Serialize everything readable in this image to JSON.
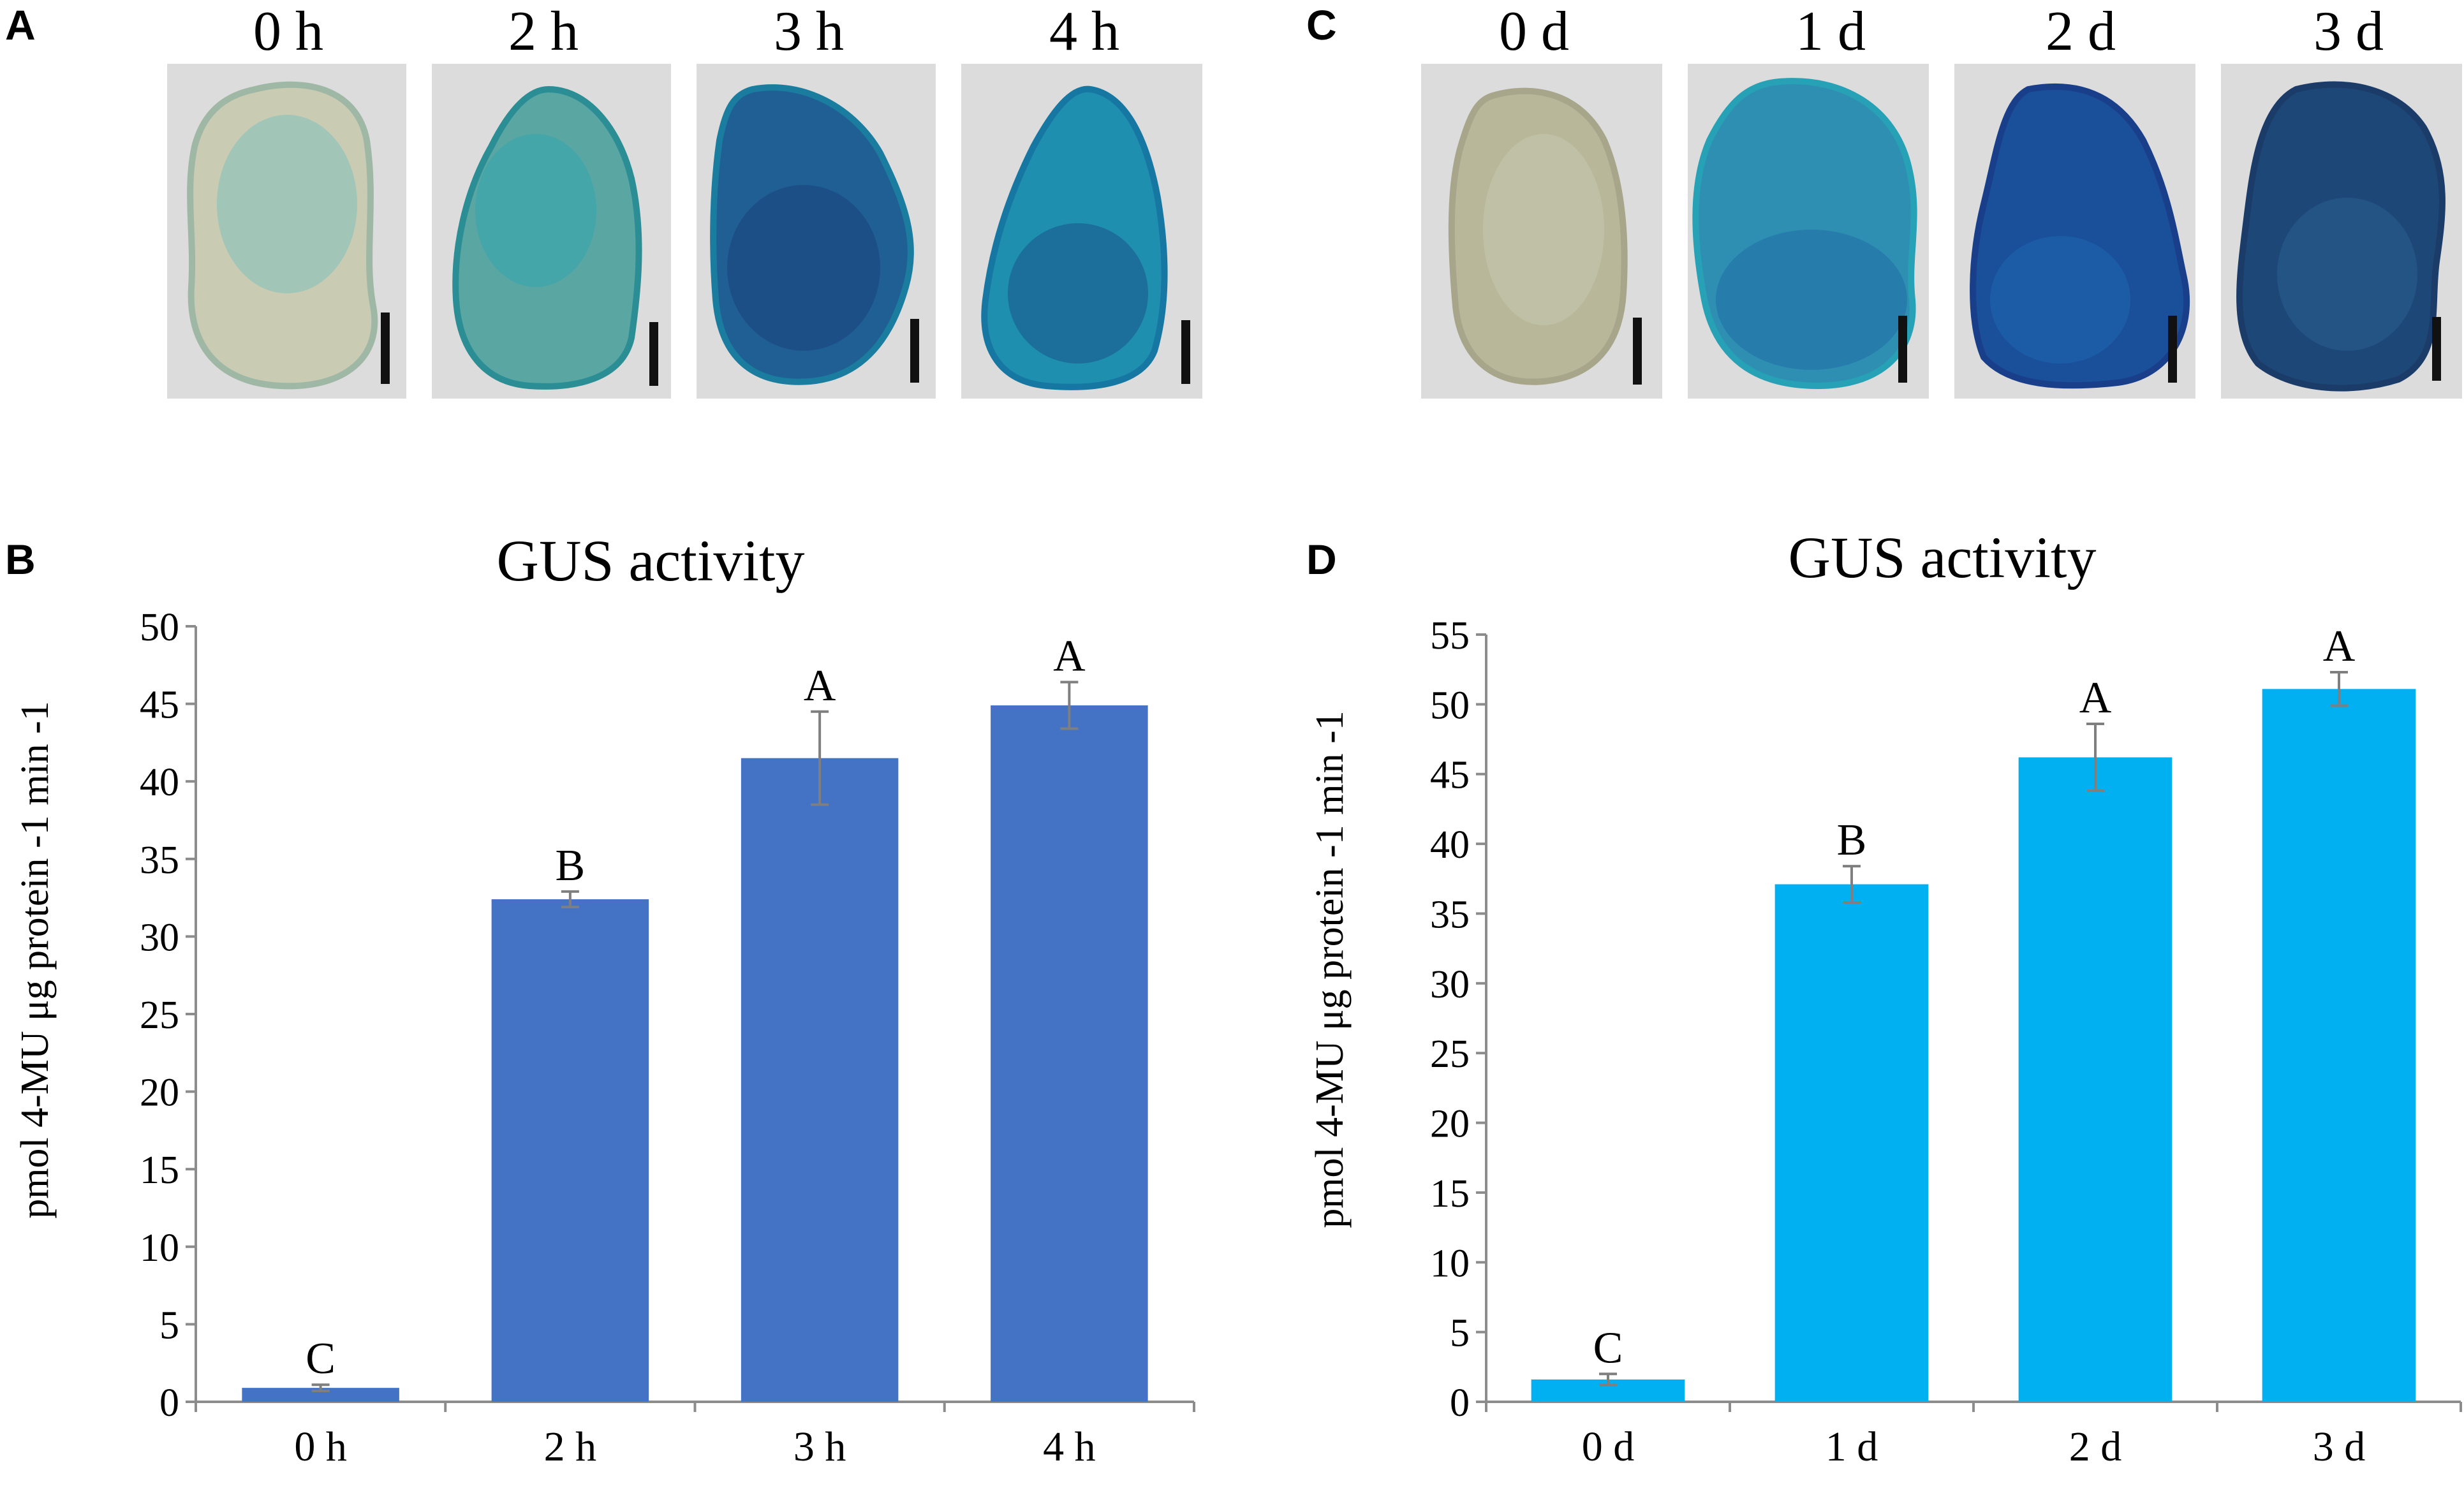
{
  "figure": {
    "panel_labels": [
      "A",
      "B",
      "C",
      "D"
    ],
    "colors": {
      "bar_hours": "#4472C4",
      "bar_days": "#00B0F0",
      "error_bar": "#7F7F7F",
      "axis": "#8c8c8c",
      "photo_bg": "#dcdcdc",
      "scale_bar": "#111111"
    },
    "photos_hours": {
      "labels": [
        "0 h",
        "2 h",
        "3 h",
        "4 h"
      ],
      "stain": [
        {
          "fill": "#c9cbb3",
          "edge": "#9fb8a5",
          "accent": "#7fc3bb"
        },
        {
          "fill": "#5aa6a3",
          "edge": "#2b8e94",
          "accent": "#2aa7b2"
        },
        {
          "fill": "#1f5f94",
          "edge": "#1a7da0",
          "accent": "#1b3f7a"
        },
        {
          "fill": "#1f8fb0",
          "edge": "#1677a2",
          "accent": "#1a4f86"
        }
      ]
    },
    "photos_days": {
      "labels": [
        "0 d",
        "1 d",
        "2 d",
        "3 d"
      ],
      "stain": [
        {
          "fill": "#b9b79a",
          "edge": "#a7a58a",
          "accent": "#cfd0bd"
        },
        {
          "fill": "#2f8fb3",
          "edge": "#27a1b6",
          "accent": "#1f6fa5"
        },
        {
          "fill": "#1a4f9a",
          "edge": "#1a3f8a",
          "accent": "#1e6cb8"
        },
        {
          "fill": "#1d4777",
          "edge": "#1b3b68",
          "accent": "#2a5f8f"
        }
      ]
    }
  },
  "chart_data": [
    {
      "type": "bar",
      "panel": "B",
      "title": "GUS activity",
      "ylabel": "pmol 4-MU μg protein -1 min -1",
      "categories": [
        "0 h",
        "2 h",
        "3 h",
        "4 h"
      ],
      "values": [
        0.9,
        32.4,
        41.5,
        44.9
      ],
      "errors": [
        0.2,
        0.5,
        3.0,
        1.5
      ],
      "significance": [
        "C",
        "B",
        "A",
        "A"
      ],
      "ylim": [
        0,
        50
      ],
      "yticks": [
        0,
        5,
        10,
        15,
        20,
        25,
        30,
        35,
        40,
        45,
        50
      ],
      "grid": false
    },
    {
      "type": "bar",
      "panel": "D",
      "title": "GUS activity",
      "ylabel": "pmol 4-MU μg protein -1 min -1",
      "categories": [
        "0 d",
        "1 d",
        "2 d",
        "3 d"
      ],
      "values": [
        1.6,
        37.1,
        46.2,
        51.1
      ],
      "errors": [
        0.4,
        1.3,
        2.4,
        1.2
      ],
      "significance": [
        "C",
        "B",
        "A",
        "A"
      ],
      "ylim": [
        0,
        55
      ],
      "yticks": [
        0,
        5,
        10,
        15,
        20,
        25,
        30,
        35,
        40,
        45,
        50,
        55
      ],
      "grid": false
    }
  ]
}
